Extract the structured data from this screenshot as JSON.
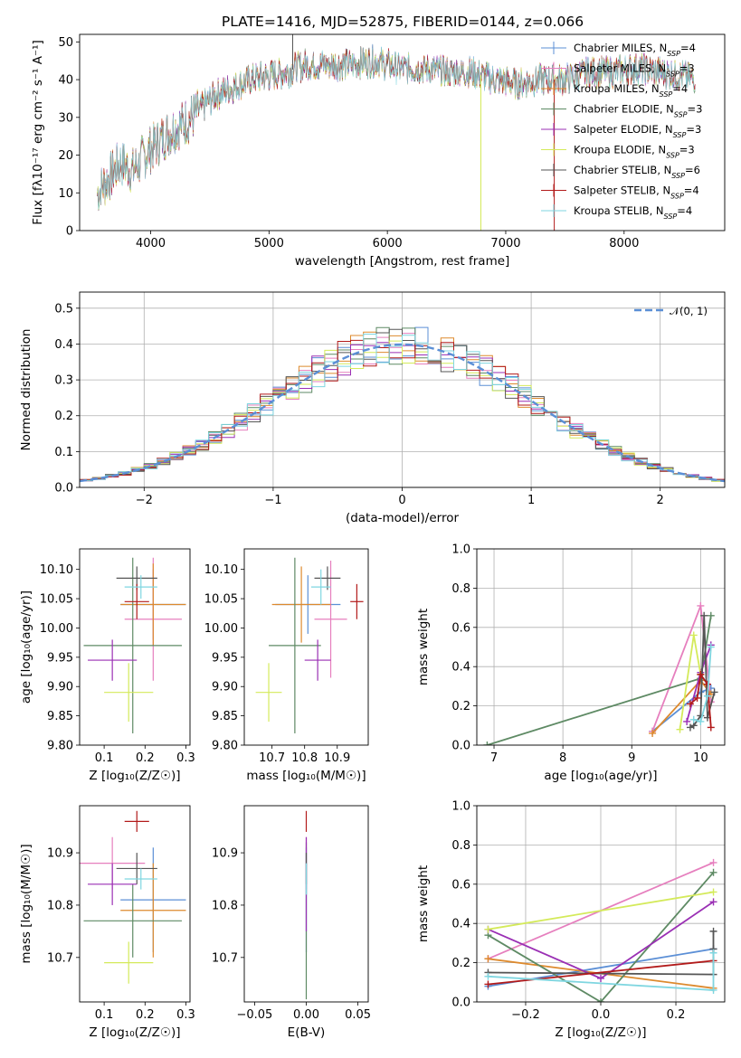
{
  "title": "PLATE=1416, MJD=52875, FIBERID=0144, z=0.066",
  "models": [
    {
      "name": "Chabrier MILES",
      "nssp": "4",
      "color": "#5b8fd6"
    },
    {
      "name": "Salpeter MILES",
      "nssp": "3",
      "color": "#e67fbe"
    },
    {
      "name": "Kroupa MILES",
      "nssp": "4",
      "color": "#dd8a2e"
    },
    {
      "name": "Chabrier ELODIE",
      "nssp": "3",
      "color": "#5e8a64"
    },
    {
      "name": "Salpeter ELODIE",
      "nssp": "3",
      "color": "#9a2fb4"
    },
    {
      "name": "Kroupa ELODIE",
      "nssp": "3",
      "color": "#d4ea5a"
    },
    {
      "name": "Chabrier STELIB",
      "nssp": "6",
      "color": "#555555"
    },
    {
      "name": "Salpeter STELIB",
      "nssp": "4",
      "color": "#b21a1a"
    },
    {
      "name": "Kroupa STELIB",
      "nssp": "4",
      "color": "#7fd6e0"
    }
  ],
  "legend_nssp_label": "SSP",
  "chart_data": [
    {
      "id": "spectrum",
      "type": "line",
      "xlabel": "wavelength [Angstrom, rest frame]",
      "ylabel": "Flux [fλ10⁻¹⁷ erg cm⁻² s⁻¹ A⁻¹]",
      "xlim": [
        3400,
        8850
      ],
      "ylim": [
        0,
        52
      ],
      "xticks": [
        4000,
        5000,
        6000,
        7000,
        8000
      ],
      "yticks": [
        0,
        10,
        20,
        30,
        40,
        50
      ],
      "continuum_x": [
        3550,
        3650,
        3750,
        3850,
        3950,
        4050,
        4150,
        4250,
        4350,
        4450,
        4550,
        4700,
        4850,
        5000,
        5150,
        5300,
        5500,
        5700,
        5900,
        6100,
        6300,
        6500,
        6700,
        6900,
        7100,
        7300,
        7500,
        7700,
        7900,
        8100,
        8300,
        8500,
        8600
      ],
      "continuum_y": [
        10,
        14,
        18,
        16,
        20,
        23,
        26,
        28,
        30,
        33,
        36,
        38,
        40,
        41,
        42,
        44,
        44,
        44,
        45,
        43,
        43,
        42,
        42,
        40,
        39,
        40,
        40,
        42,
        42,
        43,
        42,
        41,
        40
      ],
      "spikes": [
        {
          "x": 5200,
          "y": 52,
          "color": "#555555"
        },
        {
          "x": 6790,
          "y": 0,
          "color": "#d4ea5a"
        },
        {
          "x": 7410,
          "y": 0,
          "color": "#b21a1a"
        }
      ]
    },
    {
      "id": "residuals",
      "type": "histogram",
      "xlabel": "(data-model)/error",
      "ylabel": "Normed distribution",
      "xlim": [
        -2.5,
        2.5
      ],
      "ylim": [
        0,
        0.545
      ],
      "xticks": [
        -2,
        -1,
        0,
        1,
        2
      ],
      "yticks": [
        0.0,
        0.1,
        0.2,
        0.3,
        0.4,
        0.5
      ],
      "reference_label": "𝒩(0, 1)",
      "bin_width": 0.1
    },
    {
      "id": "age-vs-Z",
      "type": "scatter",
      "xlabel": "Z [log₁₀(Z/Z☉)]",
      "ylabel": "age  [log₁₀(age/yr)]",
      "xlim": [
        0.04,
        0.31
      ],
      "ylim": [
        9.8,
        10.135
      ],
      "xticks": [
        0.1,
        0.2,
        0.3
      ],
      "yticks": [
        9.8,
        9.85,
        9.9,
        9.95,
        10.0,
        10.05,
        10.1
      ],
      "points": [
        {
          "model": 0,
          "x": 0.22,
          "y": 10.04,
          "xerr": 0.08,
          "yerr": 0.06
        },
        {
          "model": 1,
          "x": 0.22,
          "y": 10.015,
          "xerr": 0.07,
          "yerr": 0.105
        },
        {
          "model": 2,
          "x": 0.22,
          "y": 10.04,
          "xerr": 0.08,
          "yerr": 0.07
        },
        {
          "model": 3,
          "x": 0.17,
          "y": 9.97,
          "xerr": 0.12,
          "yerr": 0.15
        },
        {
          "model": 4,
          "x": 0.12,
          "y": 9.945,
          "xerr": 0.06,
          "yerr": 0.035
        },
        {
          "model": 5,
          "x": 0.16,
          "y": 9.89,
          "xerr": 0.06,
          "yerr": 0.05
        },
        {
          "model": 6,
          "x": 0.18,
          "y": 10.085,
          "xerr": 0.05,
          "yerr": 0.02
        },
        {
          "model": 7,
          "x": 0.18,
          "y": 10.045,
          "xerr": 0.03,
          "yerr": 0.03
        },
        {
          "model": 8,
          "x": 0.19,
          "y": 10.07,
          "xerr": 0.04,
          "yerr": 0.02
        }
      ]
    },
    {
      "id": "age-vs-mass",
      "type": "scatter",
      "xlabel": "mass [log₁₀(M/M☉)]",
      "ylabel": "",
      "xlim": [
        10.615,
        10.995
      ],
      "ylim": [
        9.8,
        10.135
      ],
      "xticks": [
        10.7,
        10.8,
        10.9
      ],
      "yticks": [
        9.8,
        9.85,
        9.9,
        9.95,
        10.0,
        10.05,
        10.1
      ],
      "points": [
        {
          "model": 0,
          "x": 10.81,
          "y": 10.04,
          "xerr": 0.1,
          "yerr": 0.05
        },
        {
          "model": 1,
          "x": 10.88,
          "y": 10.015,
          "xerr": 0.05,
          "yerr": 0.1
        },
        {
          "model": 2,
          "x": 10.79,
          "y": 10.04,
          "xerr": 0.09,
          "yerr": 0.065
        },
        {
          "model": 3,
          "x": 10.77,
          "y": 9.97,
          "xerr": 0.08,
          "yerr": 0.15
        },
        {
          "model": 4,
          "x": 10.84,
          "y": 9.945,
          "xerr": 0.04,
          "yerr": 0.035
        },
        {
          "model": 5,
          "x": 10.69,
          "y": 9.89,
          "xerr": 0.04,
          "yerr": 0.05
        },
        {
          "model": 6,
          "x": 10.87,
          "y": 10.085,
          "xerr": 0.04,
          "yerr": 0.02
        },
        {
          "model": 7,
          "x": 10.96,
          "y": 10.045,
          "xerr": 0.02,
          "yerr": 0.03
        },
        {
          "model": 8,
          "x": 10.85,
          "y": 10.07,
          "xerr": 0.03,
          "yerr": 0.03
        }
      ]
    },
    {
      "id": "weight-vs-age",
      "type": "line",
      "xlabel": "age  [log₁₀(age/yr)]",
      "ylabel": "mass weight",
      "xlim": [
        6.75,
        10.35
      ],
      "ylim": [
        0,
        1
      ],
      "xticks": [
        7,
        8,
        9,
        10
      ],
      "yticks": [
        0.0,
        0.2,
        0.4,
        0.6,
        0.8,
        1.0
      ],
      "series": [
        {
          "model": 0,
          "x": [
            9.3,
            10.0,
            10.15
          ],
          "y": [
            0.07,
            0.27,
            0.29
          ]
        },
        {
          "model": 1,
          "x": [
            9.3,
            10.0,
            10.15
          ],
          "y": [
            0.07,
            0.71,
            0.22
          ]
        },
        {
          "model": 2,
          "x": [
            9.3,
            10.0,
            10.15
          ],
          "y": [
            0.06,
            0.33,
            0.26
          ]
        },
        {
          "model": 3,
          "x": [
            6.9,
            10.0,
            10.15
          ],
          "y": [
            0.0,
            0.34,
            0.66
          ]
        },
        {
          "model": 4,
          "x": [
            9.8,
            10.0,
            10.15
          ],
          "y": [
            0.12,
            0.37,
            0.51
          ]
        },
        {
          "model": 5,
          "x": [
            9.7,
            9.9,
            10.0
          ],
          "y": [
            0.08,
            0.56,
            0.36
          ]
        },
        {
          "model": 6,
          "x": [
            9.85,
            9.9,
            10.0,
            10.05,
            10.1,
            10.2
          ],
          "y": [
            0.09,
            0.1,
            0.15,
            0.66,
            0.14,
            0.27
          ]
        },
        {
          "model": 7,
          "x": [
            9.85,
            9.95,
            10.0,
            10.1,
            10.15
          ],
          "y": [
            0.21,
            0.24,
            0.36,
            0.31,
            0.09
          ]
        },
        {
          "model": 8,
          "x": [
            9.9,
            10.0,
            10.1,
            10.15
          ],
          "y": [
            0.13,
            0.12,
            0.25,
            0.5
          ]
        }
      ]
    },
    {
      "id": "mass-vs-Z",
      "type": "scatter",
      "xlabel": "Z [log₁₀(Z/Z☉)]",
      "ylabel": "mass [log₁₀(M/M☉)]",
      "xlim": [
        0.04,
        0.31
      ],
      "ylim": [
        10.615,
        10.99
      ],
      "xticks": [
        0.1,
        0.2,
        0.3
      ],
      "yticks": [
        10.7,
        10.8,
        10.9
      ],
      "points": [
        {
          "model": 0,
          "x": 0.22,
          "y": 10.81,
          "xerr": 0.08,
          "yerr": 0.1
        },
        {
          "model": 1,
          "x": 0.12,
          "y": 10.88,
          "xerr": 0.08,
          "yerr": 0.05
        },
        {
          "model": 2,
          "x": 0.22,
          "y": 10.79,
          "xerr": 0.08,
          "yerr": 0.09
        },
        {
          "model": 3,
          "x": 0.17,
          "y": 10.77,
          "xerr": 0.12,
          "yerr": 0.07
        },
        {
          "model": 4,
          "x": 0.12,
          "y": 10.84,
          "xerr": 0.06,
          "yerr": 0.04
        },
        {
          "model": 5,
          "x": 0.16,
          "y": 10.69,
          "xerr": 0.06,
          "yerr": 0.04
        },
        {
          "model": 6,
          "x": 0.18,
          "y": 10.87,
          "xerr": 0.05,
          "yerr": 0.03
        },
        {
          "model": 7,
          "x": 0.18,
          "y": 10.96,
          "xerr": 0.03,
          "yerr": 0.02
        },
        {
          "model": 8,
          "x": 0.19,
          "y": 10.85,
          "xerr": 0.04,
          "yerr": 0.02
        }
      ]
    },
    {
      "id": "mass-vs-ebv",
      "type": "scatter",
      "xlabel": "E(B-V)",
      "ylabel": "",
      "xlim": [
        -0.06,
        0.06
      ],
      "ylim": [
        10.615,
        10.99
      ],
      "xticks": [
        -0.05,
        0.0,
        0.05
      ],
      "yticks": [
        10.7,
        10.8,
        10.9
      ],
      "points": [
        {
          "model": 0,
          "x": 0.0,
          "y": 10.81,
          "xerr": 0,
          "yerr": 0.1
        },
        {
          "model": 1,
          "x": 0.0,
          "y": 10.88,
          "xerr": 0,
          "yerr": 0.05
        },
        {
          "model": 3,
          "x": 0.0,
          "y": 10.77,
          "xerr": 0,
          "yerr": 0.15
        },
        {
          "model": 4,
          "x": 0.0,
          "y": 10.84,
          "xerr": 0,
          "yerr": 0.09
        },
        {
          "model": 6,
          "x": 0.0,
          "y": 10.87,
          "xerr": 0,
          "yerr": 0.03
        },
        {
          "model": 7,
          "x": 0.0,
          "y": 10.96,
          "xerr": 0,
          "yerr": 0.02
        },
        {
          "model": 8,
          "x": 0.0,
          "y": 10.85,
          "xerr": 0,
          "yerr": 0.03
        }
      ]
    },
    {
      "id": "weight-vs-Z",
      "type": "line",
      "xlabel": "Z [log₁₀(Z/Z☉)]",
      "ylabel": "mass weight",
      "xlim": [
        -0.33,
        0.33
      ],
      "ylim": [
        0,
        1
      ],
      "xticks": [
        -0.2,
        0.0,
        0.2
      ],
      "yticks": [
        0.0,
        0.2,
        0.4,
        0.6,
        0.8,
        1.0
      ],
      "series": [
        {
          "model": 0,
          "x": [
            -0.3,
            0.3
          ],
          "y": [
            0.08,
            0.27
          ]
        },
        {
          "model": 1,
          "x": [
            -0.3,
            0.3
          ],
          "y": [
            0.22,
            0.71
          ]
        },
        {
          "model": 2,
          "x": [
            -0.3,
            0.3
          ],
          "y": [
            0.22,
            0.07
          ]
        },
        {
          "model": 3,
          "x": [
            -0.3,
            0.0,
            0.3
          ],
          "y": [
            0.34,
            0.0,
            0.66
          ]
        },
        {
          "model": 4,
          "x": [
            -0.3,
            0.0,
            0.3
          ],
          "y": [
            0.37,
            0.12,
            0.51
          ]
        },
        {
          "model": 5,
          "x": [
            -0.3,
            0.3
          ],
          "y": [
            0.37,
            0.56
          ]
        },
        {
          "model": 6,
          "x": [
            -0.3,
            0.3,
            0.3,
            0.3
          ],
          "y": [
            0.15,
            0.14,
            0.27,
            0.36
          ]
        },
        {
          "model": 7,
          "x": [
            -0.3,
            0.3
          ],
          "y": [
            0.09,
            0.21
          ]
        },
        {
          "model": 8,
          "x": [
            -0.3,
            0.3,
            0.3
          ],
          "y": [
            0.13,
            0.06,
            0.25
          ]
        }
      ]
    }
  ]
}
